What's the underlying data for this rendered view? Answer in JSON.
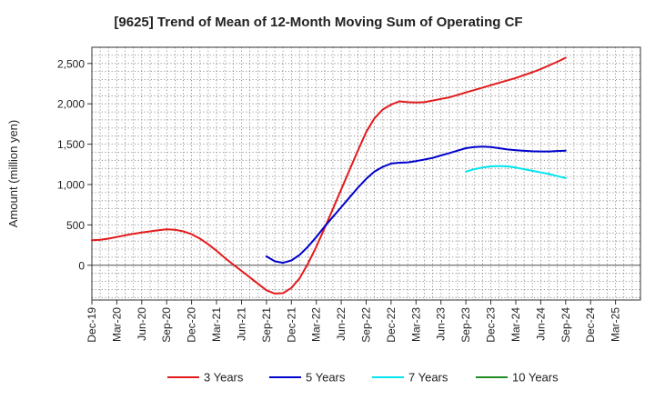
{
  "chart_data": {
    "type": "line",
    "title": "[9625]  Trend of Mean of 12-Month Moving Sum of Operating CF",
    "xlabel": "",
    "ylabel": "Amount (million yen)",
    "ylim": [
      -430,
      2700
    ],
    "yticks": [
      0,
      500,
      1000,
      1500,
      2000,
      2500
    ],
    "ytick_labels": [
      "0",
      "500",
      "1,000",
      "1,500",
      "2,000",
      "2,500"
    ],
    "xticks": [
      "Dec-19",
      "Mar-20",
      "Jun-20",
      "Sep-20",
      "Dec-20",
      "Mar-21",
      "Jun-21",
      "Sep-21",
      "Dec-21",
      "Mar-22",
      "Jun-22",
      "Sep-22",
      "Dec-22",
      "Mar-23",
      "Jun-23",
      "Sep-23",
      "Dec-23",
      "Mar-24",
      "Jun-24",
      "Sep-24",
      "Dec-24",
      "Mar-25"
    ],
    "grid": true,
    "series": [
      {
        "name": "3 Years",
        "color": "#e31a1c",
        "points": [
          [
            "Dec-19",
            310
          ],
          [
            "Jan-20",
            315
          ],
          [
            "Feb-20",
            330
          ],
          [
            "Mar-20",
            350
          ],
          [
            "Apr-20",
            370
          ],
          [
            "May-20",
            390
          ],
          [
            "Jun-20",
            405
          ],
          [
            "Jul-20",
            420
          ],
          [
            "Aug-20",
            435
          ],
          [
            "Sep-20",
            445
          ],
          [
            "Oct-20",
            440
          ],
          [
            "Nov-20",
            420
          ],
          [
            "Dec-20",
            385
          ],
          [
            "Jan-21",
            330
          ],
          [
            "Feb-21",
            260
          ],
          [
            "Mar-21",
            180
          ],
          [
            "Apr-21",
            90
          ],
          [
            "May-21",
            10
          ],
          [
            "Jun-21",
            -70
          ],
          [
            "Jul-21",
            -150
          ],
          [
            "Aug-21",
            -230
          ],
          [
            "Sep-21",
            -310
          ],
          [
            "Oct-21",
            -350
          ],
          [
            "Nov-21",
            -345
          ],
          [
            "Dec-21",
            -280
          ],
          [
            "Jan-22",
            -160
          ],
          [
            "Feb-22",
            20
          ],
          [
            "Mar-22",
            230
          ],
          [
            "Apr-22",
            460
          ],
          [
            "May-22",
            700
          ],
          [
            "Jun-22",
            940
          ],
          [
            "Jul-22",
            1180
          ],
          [
            "Aug-22",
            1420
          ],
          [
            "Sep-22",
            1650
          ],
          [
            "Oct-22",
            1820
          ],
          [
            "Nov-22",
            1930
          ],
          [
            "Dec-22",
            1990
          ],
          [
            "Jan-23",
            2030
          ],
          [
            "Feb-23",
            2020
          ],
          [
            "Mar-23",
            2015
          ],
          [
            "Apr-23",
            2020
          ],
          [
            "May-23",
            2040
          ],
          [
            "Jun-23",
            2060
          ],
          [
            "Jul-23",
            2080
          ],
          [
            "Aug-23",
            2110
          ],
          [
            "Sep-23",
            2140
          ],
          [
            "Oct-23",
            2170
          ],
          [
            "Nov-23",
            2200
          ],
          [
            "Dec-23",
            2230
          ],
          [
            "Jan-24",
            2260
          ],
          [
            "Feb-24",
            2290
          ],
          [
            "Mar-24",
            2320
          ],
          [
            "Apr-24",
            2355
          ],
          [
            "May-24",
            2390
          ],
          [
            "Jun-24",
            2430
          ],
          [
            "Jul-24",
            2475
          ],
          [
            "Aug-24",
            2520
          ],
          [
            "Sep-24",
            2570
          ]
        ]
      },
      {
        "name": "5 Years",
        "color": "#0000cc",
        "points": [
          [
            "Sep-21",
            110
          ],
          [
            "Oct-21",
            50
          ],
          [
            "Nov-21",
            30
          ],
          [
            "Dec-21",
            60
          ],
          [
            "Jan-22",
            130
          ],
          [
            "Feb-22",
            230
          ],
          [
            "Mar-22",
            350
          ],
          [
            "Apr-22",
            480
          ],
          [
            "May-22",
            600
          ],
          [
            "Jun-22",
            720
          ],
          [
            "Jul-22",
            840
          ],
          [
            "Aug-22",
            960
          ],
          [
            "Sep-22",
            1070
          ],
          [
            "Oct-22",
            1160
          ],
          [
            "Nov-22",
            1220
          ],
          [
            "Dec-22",
            1260
          ],
          [
            "Jan-23",
            1270
          ],
          [
            "Feb-23",
            1275
          ],
          [
            "Mar-23",
            1290
          ],
          [
            "Apr-23",
            1310
          ],
          [
            "May-23",
            1330
          ],
          [
            "Jun-23",
            1360
          ],
          [
            "Jul-23",
            1390
          ],
          [
            "Aug-23",
            1420
          ],
          [
            "Sep-23",
            1450
          ],
          [
            "Oct-23",
            1465
          ],
          [
            "Nov-23",
            1470
          ],
          [
            "Dec-23",
            1465
          ],
          [
            "Jan-24",
            1450
          ],
          [
            "Feb-24",
            1435
          ],
          [
            "Mar-24",
            1425
          ],
          [
            "Apr-24",
            1418
          ],
          [
            "May-24",
            1412
          ],
          [
            "Jun-24",
            1410
          ],
          [
            "Jul-24",
            1410
          ],
          [
            "Aug-24",
            1415
          ],
          [
            "Sep-24",
            1420
          ]
        ]
      },
      {
        "name": "7 Years",
        "color": "#00e5ee",
        "points": [
          [
            "Sep-23",
            1160
          ],
          [
            "Oct-23",
            1190
          ],
          [
            "Nov-23",
            1210
          ],
          [
            "Dec-23",
            1225
          ],
          [
            "Jan-24",
            1230
          ],
          [
            "Feb-24",
            1225
          ],
          [
            "Mar-24",
            1210
          ],
          [
            "Apr-24",
            1190
          ],
          [
            "May-24",
            1170
          ],
          [
            "Jun-24",
            1150
          ],
          [
            "Jul-24",
            1130
          ],
          [
            "Aug-24",
            1105
          ],
          [
            "Sep-24",
            1080
          ]
        ]
      },
      {
        "name": "10 Years",
        "color": "#228b22",
        "points": []
      }
    ]
  }
}
